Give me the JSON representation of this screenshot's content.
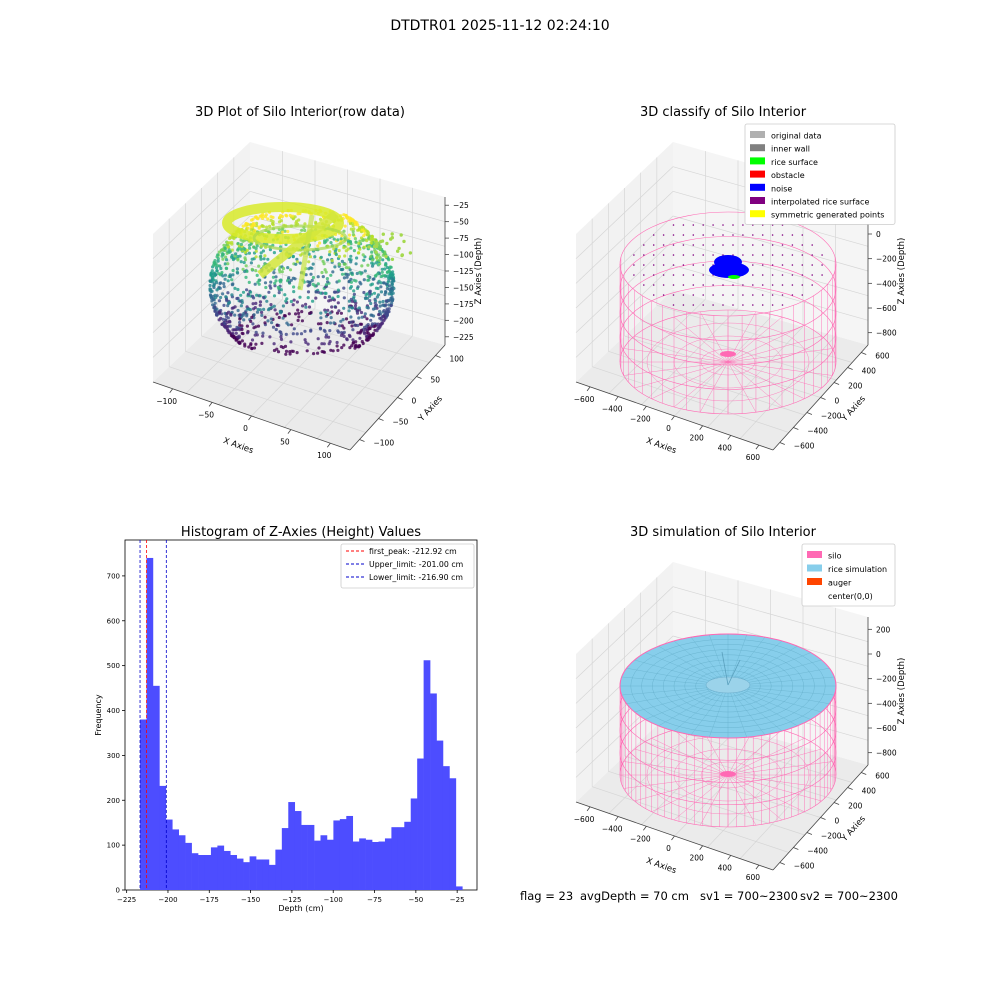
{
  "figure": {
    "suptitle": "DTDTR01 2025-11-12 02:24:10",
    "footer": {
      "flag": "flag = 23",
      "avg_depth": "avgDepth = 70 cm",
      "sv1": "sv1 = 700~2300",
      "sv2": "sv2 = 700~2300"
    }
  },
  "colors": {
    "silo_pink": "#ff69b4",
    "rice_blue": "#87ceeb",
    "auger": "#ff4500",
    "noise": "#0000ff",
    "hist_bar": "#4d4dff",
    "first_peak_line": "#ff0000",
    "limit_line": "#0000cc"
  },
  "chart_data": [
    {
      "type": "scatter",
      "title": "3D Plot of Silo Interior(row data)",
      "xlabel": "X Axies",
      "ylabel": "Y Axies",
      "zlabel": "Z Axies (Depth)",
      "x_ticks": [
        "−100",
        "−50",
        "0",
        "50",
        "100"
      ],
      "y_ticks": [
        "−100",
        "−50",
        "0",
        "50",
        "100"
      ],
      "z_ticks": [
        "−25",
        "−50",
        "−75",
        "−100",
        "−125",
        "−150",
        "−175",
        "−200",
        "−225"
      ],
      "xlim": [
        -130,
        130
      ],
      "ylim": [
        -110,
        120
      ],
      "zlim": [
        -240,
        -15
      ],
      "colormap": "viridis"
    },
    {
      "type": "scatter",
      "title": "3D classify of Silo Interior",
      "xlabel": "X Axies",
      "ylabel": "Y Axies",
      "zlabel": "Z Axies (Depth)",
      "x_ticks": [
        "−600",
        "−400",
        "−200",
        "0",
        "200",
        "400",
        "600"
      ],
      "y_ticks": [
        "−600",
        "−400",
        "−200",
        "0",
        "200",
        "400",
        "600"
      ],
      "z_ticks": [
        "200",
        "0",
        "−200",
        "−400",
        "−600",
        "−800"
      ],
      "legend": [
        {
          "label": "original data",
          "color": "#b0b0b0"
        },
        {
          "label": "inner wall",
          "color": "#808080"
        },
        {
          "label": "rice surface",
          "color": "#00ff00"
        },
        {
          "label": "obstacle",
          "color": "#ff0000"
        },
        {
          "label": "noise",
          "color": "#0000ff"
        },
        {
          "label": "interpolated rice surface",
          "color": "#800080"
        },
        {
          "label": "symmetric generated points",
          "color": "#ffff00"
        }
      ],
      "legend_position": "upper right"
    },
    {
      "type": "bar",
      "title": "Histogram of Z-Axies (Height) Values",
      "xlabel": "Depth (cm)",
      "ylabel": "Frequency",
      "xlim": [
        -226,
        -13
      ],
      "ylim": [
        0,
        780
      ],
      "x_ticks": [
        -225,
        -200,
        -175,
        -150,
        -125,
        -100,
        -75,
        -50,
        -25
      ],
      "x_tick_labels": [
        "−225",
        "−200",
        "−175",
        "−150",
        "−125",
        "−100",
        "−75",
        "−50",
        "−25"
      ],
      "y_ticks": [
        0,
        100,
        200,
        300,
        400,
        500,
        600,
        700
      ],
      "bin_start": -216.9,
      "bin_width": 3.9,
      "values": [
        380,
        740,
        455,
        232,
        157,
        135,
        122,
        105,
        82,
        78,
        78,
        95,
        99,
        87,
        78,
        70,
        62,
        75,
        68,
        68,
        56,
        90,
        138,
        196,
        176,
        145,
        145,
        110,
        122,
        112,
        155,
        158,
        165,
        108,
        115,
        112,
        107,
        108,
        115,
        140,
        140,
        152,
        204,
        293,
        512,
        438,
        333,
        276,
        249,
        8
      ],
      "vlines": [
        {
          "label": "first_peak: -212.92 cm",
          "x": -212.92,
          "color": "#ff0000"
        },
        {
          "label": "Upper_limit: -201.00 cm",
          "x": -201.0,
          "color": "#0000cc"
        },
        {
          "label": "Lower_limit: -216.90 cm",
          "x": -216.9,
          "color": "#0000cc"
        }
      ],
      "legend_position": "upper right"
    },
    {
      "type": "scatter",
      "title": "3D simulation of Silo Interior",
      "xlabel": "X Axies",
      "ylabel": "Y Axies",
      "zlabel": "Z Axies (Depth)",
      "x_ticks": [
        "−600",
        "−400",
        "−200",
        "0",
        "200",
        "400",
        "600"
      ],
      "y_ticks": [
        "−600",
        "−400",
        "−200",
        "0",
        "200",
        "400",
        "600"
      ],
      "z_ticks": [
        "200",
        "0",
        "−200",
        "−400",
        "−600",
        "−800"
      ],
      "legend": [
        {
          "label": "silo",
          "color": "#ff69b4"
        },
        {
          "label": "rice simulation",
          "color": "#87ceeb"
        },
        {
          "label": "auger",
          "color": "#ff4500"
        },
        {
          "label": "center(0,0)",
          "color": "#ffffff"
        }
      ],
      "legend_position": "upper right"
    }
  ]
}
